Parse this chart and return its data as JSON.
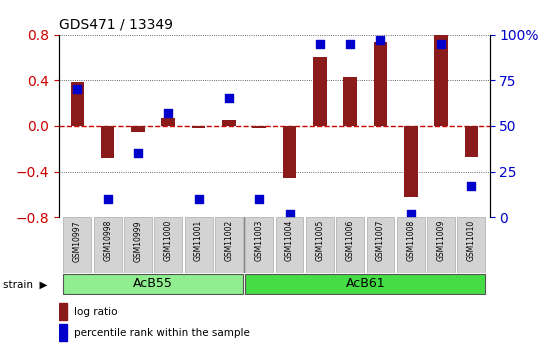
{
  "title": "GDS471 / 13349",
  "samples": [
    "GSM10997",
    "GSM10998",
    "GSM10999",
    "GSM11000",
    "GSM11001",
    "GSM11002",
    "GSM11003",
    "GSM11004",
    "GSM11005",
    "GSM11006",
    "GSM11007",
    "GSM11008",
    "GSM11009",
    "GSM11010"
  ],
  "log_ratio": [
    0.38,
    -0.28,
    -0.05,
    0.07,
    -0.02,
    0.05,
    -0.02,
    -0.46,
    0.6,
    0.43,
    0.73,
    -0.62,
    0.8,
    -0.27
  ],
  "percentile_rank": [
    70,
    10,
    35,
    57,
    10,
    65,
    10,
    2,
    95,
    95,
    97,
    2,
    95,
    17
  ],
  "groups": [
    {
      "label": "AcB55",
      "start": 0,
      "end": 5,
      "color": "#90ee90"
    },
    {
      "label": "AcB61",
      "start": 6,
      "end": 13,
      "color": "#44dd44"
    }
  ],
  "ylim_left": [
    -0.8,
    0.8
  ],
  "ylim_right": [
    0,
    100
  ],
  "yticks_left": [
    -0.8,
    -0.4,
    0.0,
    0.4,
    0.8
  ],
  "yticks_right": [
    0,
    25,
    50,
    75,
    100
  ],
  "bar_color": "#8b1a1a",
  "dot_color": "#0000cc",
  "zero_line_color": "#cc0000",
  "grid_color": "#333333",
  "background_color": "#ffffff",
  "legend_items": [
    {
      "label": "log ratio",
      "color": "#8b1a1a"
    },
    {
      "label": "percentile rank within the sample",
      "color": "#0000cc"
    }
  ]
}
